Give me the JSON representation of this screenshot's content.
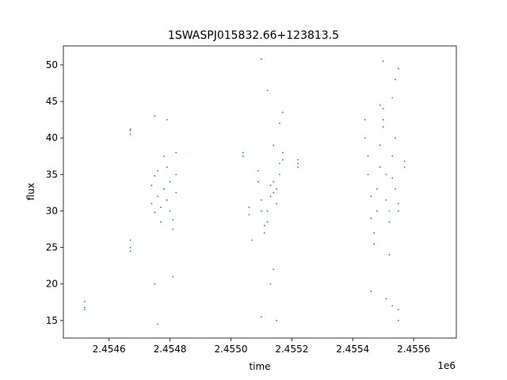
{
  "chart_data": {
    "type": "scatter",
    "title": "1SWASPJ015832.66+123813.5",
    "xlabel": "time",
    "ylabel": "flux",
    "x_offset_label": "1e6",
    "x_tick_labels": [
      "2.4546",
      "2.4548",
      "2.4550",
      "2.4552",
      "2.4554",
      "2.4556"
    ],
    "x_tick_values": [
      2.4546,
      2.4548,
      2.455,
      2.4552,
      2.4554,
      2.4556
    ],
    "y_tick_values": [
      15,
      20,
      25,
      30,
      35,
      40,
      45,
      50
    ],
    "xlim": [
      2.45445,
      2.45574
    ],
    "ylim": [
      12.6,
      52.6
    ],
    "grid": false,
    "marker_color": "#1f77b4",
    "series": [
      {
        "points": [
          [
            2.45452,
            16.8
          ],
          [
            2.45452,
            17.6
          ],
          [
            2.45452,
            16.5
          ],
          [
            2.45467,
            40.5
          ],
          [
            2.45467,
            41.2
          ],
          [
            2.45467,
            41.0
          ],
          [
            2.45467,
            25.0
          ],
          [
            2.45467,
            24.5
          ],
          [
            2.45467,
            26.0
          ],
          [
            2.45474,
            31.0
          ],
          [
            2.45474,
            33.5
          ],
          [
            2.45475,
            29.8
          ],
          [
            2.45475,
            34.8
          ],
          [
            2.45476,
            32.0
          ],
          [
            2.45476,
            35.5
          ],
          [
            2.45477,
            28.5
          ],
          [
            2.45477,
            30.5
          ],
          [
            2.45478,
            37.5
          ],
          [
            2.45478,
            33.0
          ],
          [
            2.45479,
            36.0
          ],
          [
            2.45479,
            31.5
          ],
          [
            2.4548,
            30.0
          ],
          [
            2.4548,
            34.0
          ],
          [
            2.45481,
            27.5
          ],
          [
            2.45481,
            28.8
          ],
          [
            2.45482,
            32.5
          ],
          [
            2.45482,
            35.0
          ],
          [
            2.45475,
            20.0
          ],
          [
            2.45475,
            43.0
          ],
          [
            2.45479,
            42.5
          ],
          [
            2.45481,
            21.0
          ],
          [
            2.45482,
            38.0
          ],
          [
            2.45476,
            14.5
          ],
          [
            2.45504,
            38.0
          ],
          [
            2.45504,
            37.5
          ],
          [
            2.45506,
            30.5
          ],
          [
            2.45506,
            29.5
          ],
          [
            2.45507,
            26.0
          ],
          [
            2.45509,
            35.5
          ],
          [
            2.45509,
            34.0
          ],
          [
            2.4551,
            31.5
          ],
          [
            2.4551,
            30.0
          ],
          [
            2.45511,
            28.0
          ],
          [
            2.45511,
            27.0
          ],
          [
            2.45512,
            28.5
          ],
          [
            2.45512,
            30.0
          ],
          [
            2.45513,
            32.0
          ],
          [
            2.45513,
            33.5
          ],
          [
            2.45514,
            34.0
          ],
          [
            2.45514,
            32.5
          ],
          [
            2.45515,
            31.0
          ],
          [
            2.45515,
            33.0
          ],
          [
            2.45516,
            35.0
          ],
          [
            2.45516,
            36.5
          ],
          [
            2.45517,
            37.0
          ],
          [
            2.45517,
            38.0
          ],
          [
            2.4551,
            15.5
          ],
          [
            2.4551,
            50.8
          ],
          [
            2.45512,
            46.5
          ],
          [
            2.45513,
            20.0
          ],
          [
            2.45514,
            39.0
          ],
          [
            2.45516,
            42.0
          ],
          [
            2.45515,
            15.0
          ],
          [
            2.45514,
            22.0
          ],
          [
            2.45517,
            43.5
          ],
          [
            2.45522,
            36.0
          ],
          [
            2.45522,
            37.0
          ],
          [
            2.45522,
            36.5
          ],
          [
            2.45544,
            42.5
          ],
          [
            2.45544,
            40.0
          ],
          [
            2.45545,
            37.5
          ],
          [
            2.45545,
            35.0
          ],
          [
            2.45546,
            32.0
          ],
          [
            2.45546,
            29.0
          ],
          [
            2.45547,
            27.0
          ],
          [
            2.45547,
            25.5
          ],
          [
            2.45548,
            30.0
          ],
          [
            2.45548,
            33.0
          ],
          [
            2.45549,
            36.0
          ],
          [
            2.45549,
            39.0
          ],
          [
            2.4555,
            41.5
          ],
          [
            2.4555,
            42.5
          ],
          [
            2.45551,
            35.0
          ],
          [
            2.45551,
            31.5
          ],
          [
            2.45552,
            28.5
          ],
          [
            2.45552,
            30.0
          ],
          [
            2.45553,
            34.5
          ],
          [
            2.45553,
            37.5
          ],
          [
            2.45554,
            40.0
          ],
          [
            2.45554,
            33.0
          ],
          [
            2.45555,
            31.0
          ],
          [
            2.45555,
            30.0
          ],
          [
            2.45557,
            36.0
          ],
          [
            2.45557,
            36.8
          ],
          [
            2.45546,
            19.0
          ],
          [
            2.4555,
            50.5
          ],
          [
            2.4555,
            44.0
          ],
          [
            2.45551,
            18.0
          ],
          [
            2.45552,
            24.0
          ],
          [
            2.45553,
            45.5
          ],
          [
            2.45553,
            17.0
          ],
          [
            2.45554,
            48.0
          ],
          [
            2.45555,
            16.5
          ],
          [
            2.45555,
            15.0
          ],
          [
            2.45555,
            49.5
          ],
          [
            2.45549,
            44.5
          ]
        ]
      }
    ]
  }
}
